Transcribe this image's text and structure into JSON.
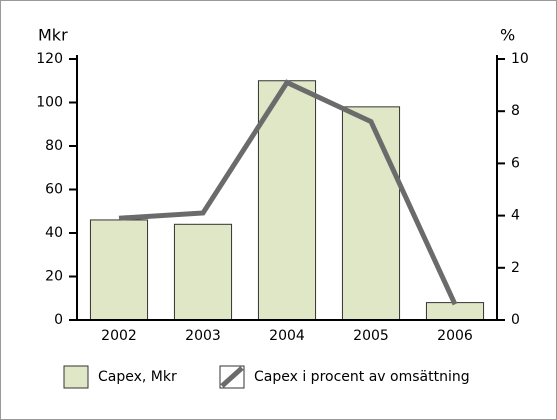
{
  "chart_data": {
    "type": "bar",
    "y_label": "Mkr",
    "y2_label": "%",
    "categories": [
      "2002",
      "2003",
      "2004",
      "2005",
      "2006"
    ],
    "series": [
      {
        "name": "Capex, Mkr",
        "type": "bar",
        "color": "#dfe7c6",
        "values": [
          46,
          44,
          110,
          98,
          8
        ]
      },
      {
        "name": "Capex i procent av omsättning",
        "type": "line",
        "axis": "y2",
        "color": "#6b6b6b",
        "values": [
          3.9,
          4.1,
          9.1,
          7.6,
          0.6
        ]
      }
    ],
    "ylim": [
      0,
      120
    ],
    "yticks": [
      0,
      20,
      40,
      60,
      80,
      100,
      120
    ],
    "y2lim": [
      0,
      10
    ],
    "y2ticks": [
      0,
      2,
      4,
      6,
      8,
      10
    ]
  }
}
